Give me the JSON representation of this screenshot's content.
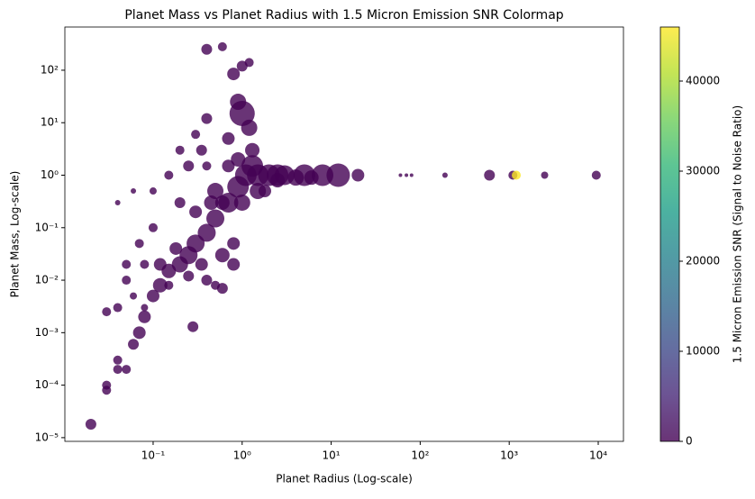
{
  "chart_data": {
    "type": "scatter",
    "title": "Planet Mass vs Planet Radius with 1.5 Micron Emission SNR Colormap",
    "x_label": "Planet Radius (Log-scale)",
    "y_label": "Planet Mass, Log-scale)",
    "colorbar_label": "1.5 Micron Emission SNR (Signal to Noise Ratio)",
    "x_scale": "log",
    "y_scale": "log",
    "colormap": "viridis",
    "alpha": 0.8,
    "xlim": [
      0.0102,
      19200
    ],
    "ylim": [
      8.5e-06,
      665
    ],
    "clim": [
      0,
      46000
    ],
    "xticks": [
      {
        "value": 0.1,
        "label": "10⁻¹"
      },
      {
        "value": 1,
        "label": "10⁰"
      },
      {
        "value": 10,
        "label": "10¹"
      },
      {
        "value": 100,
        "label": "10²"
      },
      {
        "value": 1000,
        "label": "10³"
      },
      {
        "value": 10000,
        "label": "10⁴"
      }
    ],
    "yticks": [
      {
        "value": 1e-05,
        "label": "10⁻⁵"
      },
      {
        "value": 0.0001,
        "label": "10⁻⁴"
      },
      {
        "value": 0.001,
        "label": "10⁻³"
      },
      {
        "value": 0.01,
        "label": "10⁻²"
      },
      {
        "value": 0.1,
        "label": "10⁻¹"
      },
      {
        "value": 1,
        "label": "10⁰"
      },
      {
        "value": 10,
        "label": "10¹"
      },
      {
        "value": 100,
        "label": "10²"
      }
    ],
    "cticks": [
      0,
      10000,
      20000,
      30000,
      40000
    ],
    "x": [
      0.02,
      0.03,
      0.03,
      0.04,
      0.04,
      0.05,
      0.06,
      0.07,
      0.08,
      0.1,
      0.12,
      0.15,
      0.2,
      0.25,
      0.3,
      0.4,
      0.5,
      0.7,
      0.9,
      1.1,
      1.3,
      1.5,
      2,
      2.5,
      3,
      5,
      8,
      12,
      20,
      60,
      70,
      80,
      190,
      600,
      1100,
      1200,
      2500,
      9500,
      0.4,
      0.6,
      0.8,
      1.0,
      1.2,
      1.0,
      0.9,
      0.7,
      0.4,
      0.3,
      0.2,
      0.15,
      0.1,
      0.06,
      0.04,
      0.1,
      0.07,
      0.05,
      0.05,
      0.04,
      0.03,
      0.06,
      0.08,
      0.08,
      0.15,
      0.28,
      0.25,
      0.4,
      0.5,
      0.6,
      0.8,
      0.6,
      0.3,
      0.2,
      0.12,
      0.18,
      0.5,
      0.7,
      0.35,
      0.25,
      0.45,
      1,
      1.3,
      1.5,
      0.8,
      0.35,
      0.6,
      0.9,
      1.2,
      0.4,
      1.8,
      2.5,
      4,
      6
    ],
    "values": [
      1.8e-05,
      0.0001,
      8e-05,
      0.0003,
      0.0002,
      0.0002,
      0.0006,
      0.001,
      0.002,
      0.005,
      0.008,
      0.015,
      0.02,
      0.03,
      0.05,
      0.08,
      0.15,
      0.3,
      0.6,
      1,
      1.5,
      1,
      1,
      1,
      1,
      1,
      1,
      1,
      1,
      1,
      1,
      1,
      1,
      1,
      1,
      1,
      1,
      1,
      250,
      280,
      85,
      120,
      140,
      15,
      25,
      5,
      12,
      6,
      3,
      1,
      0.5,
      0.5,
      0.3,
      0.1,
      0.05,
      0.02,
      0.01,
      0.003,
      0.0025,
      0.005,
      0.02,
      0.003,
      0.008,
      0.0013,
      0.012,
      0.01,
      0.008,
      0.007,
      0.02,
      0.03,
      0.2,
      0.3,
      0.02,
      0.04,
      0.5,
      1.5,
      3,
      1.5,
      0.3,
      0.3,
      3,
      0.5,
      0.05,
      0.02,
      0.3,
      2,
      8,
      1.5,
      0.5,
      0.8,
      0.9,
      0.9
    ],
    "sizes": [
      6,
      5,
      5,
      5,
      5,
      5,
      6,
      7,
      7,
      7,
      8,
      8,
      9,
      10,
      10,
      10,
      10,
      11,
      12,
      12,
      12,
      12,
      12,
      12,
      11,
      12,
      12,
      13,
      7,
      2,
      2,
      2,
      3,
      6,
      5,
      5,
      4,
      5,
      6,
      5,
      7,
      6,
      5,
      14,
      9,
      7,
      6,
      5,
      5,
      5,
      4,
      3,
      3,
      5,
      5,
      5,
      5,
      5,
      5,
      4,
      5,
      4,
      5,
      6,
      6,
      6,
      5,
      6,
      7,
      8,
      7,
      6,
      7,
      7,
      9,
      7,
      6,
      6,
      8,
      9,
      8,
      9,
      7,
      7,
      8,
      8,
      9,
      5,
      7,
      8,
      9,
      8
    ],
    "snr": [
      0,
      0,
      0,
      0,
      0,
      0,
      0,
      0,
      0,
      0,
      0,
      0,
      0,
      0,
      0,
      0,
      0,
      0,
      0,
      0,
      0,
      0,
      0,
      0,
      0,
      0,
      0,
      0,
      0,
      0,
      0,
      0,
      0,
      0,
      0,
      46000,
      0,
      0,
      0,
      0,
      0,
      0,
      0,
      0,
      0,
      0,
      0,
      0,
      0,
      0,
      0,
      0,
      0,
      0,
      0,
      0,
      0,
      0,
      0,
      0,
      0,
      0,
      0,
      0,
      0,
      0,
      0,
      0,
      0,
      0,
      0,
      0,
      0,
      0,
      0,
      0,
      0,
      0,
      0,
      0,
      0,
      0,
      0,
      0,
      0,
      0,
      0,
      0,
      0,
      0,
      0,
      0
    ]
  }
}
